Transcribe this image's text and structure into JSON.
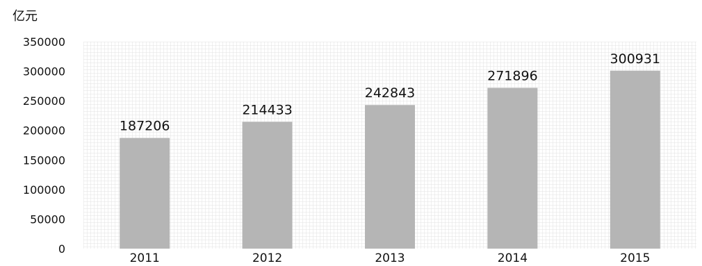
{
  "chart_data": {
    "type": "bar",
    "categories": [
      "2011",
      "2012",
      "2013",
      "2014",
      "2015"
    ],
    "values": [
      187206,
      214433,
      242843,
      271896,
      300931
    ],
    "data_labels": [
      "187206",
      "214433",
      "242843",
      "271896",
      "300931"
    ],
    "y_unit": "亿元",
    "yticks": [
      0,
      50000,
      100000,
      150000,
      200000,
      250000,
      300000,
      350000
    ],
    "ytick_labels": [
      "0",
      "50000",
      "100000",
      "150000",
      "200000",
      "250000",
      "300000",
      "350000"
    ],
    "ylim": [
      0,
      350000
    ],
    "grid": true,
    "legend": "none",
    "colors": {
      "bar": "#b5b5b5",
      "grid": "#e2e2e2",
      "text": "#111111"
    }
  }
}
